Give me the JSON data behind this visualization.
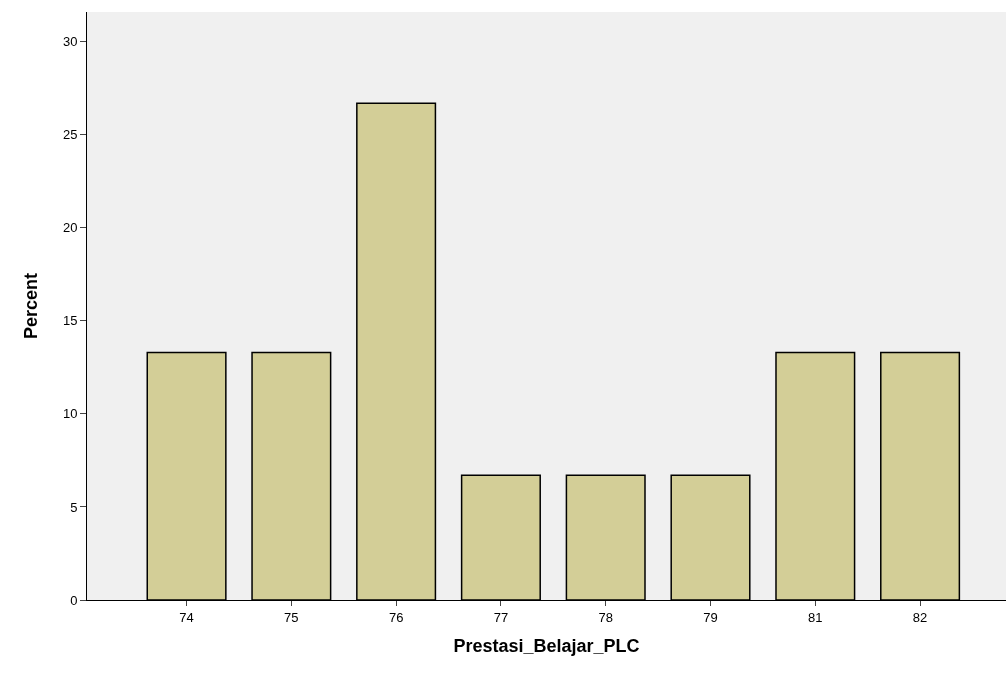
{
  "chart_data": {
    "type": "bar",
    "categories": [
      "74",
      "75",
      "76",
      "77",
      "78",
      "79",
      "81",
      "82"
    ],
    "values": [
      13.3,
      13.3,
      26.7,
      6.7,
      6.7,
      6.7,
      13.3,
      13.3
    ],
    "color": "#d3ce97",
    "xlabel": "Prestasi_Belajar_PLC",
    "ylabel": "Percent",
    "ylim": [
      0,
      31.6
    ],
    "yticks": [
      0,
      5,
      10,
      15,
      20,
      25,
      30
    ],
    "grid": false,
    "legend": false
  }
}
